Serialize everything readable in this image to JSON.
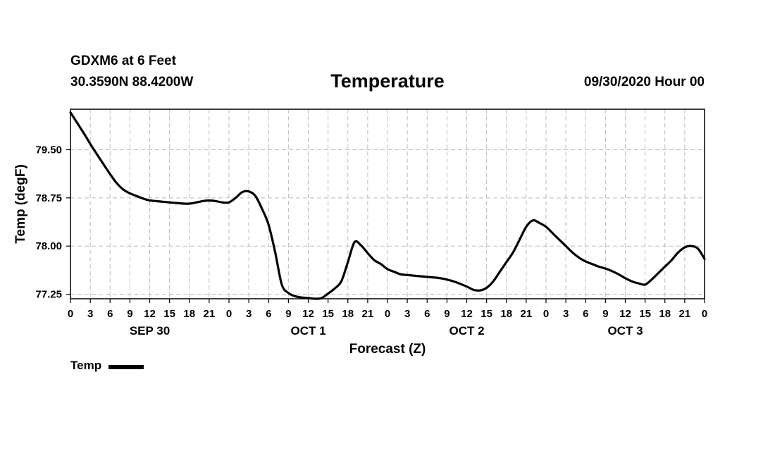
{
  "header": {
    "station": "GDXM6 at 6 Feet",
    "coords": "30.3590N 88.4200W",
    "title": "Temperature",
    "datetime": "09/30/2020 Hour 00"
  },
  "chart_data": {
    "type": "line",
    "title": "Temperature",
    "xlabel": "Forecast (Z)",
    "ylabel": "Temp (degF)",
    "xlim": [
      0,
      96
    ],
    "ylim": [
      77.18,
      80.13
    ],
    "grid": true,
    "legend_position": "bottom-left",
    "x_ticks": [
      0,
      3,
      6,
      9,
      12,
      15,
      18,
      21,
      24,
      27,
      30,
      33,
      36,
      39,
      42,
      45,
      48,
      51,
      54,
      57,
      60,
      63,
      66,
      69,
      72,
      75,
      78,
      81,
      84,
      87,
      90,
      93,
      96
    ],
    "x_tick_labels": [
      "0",
      "3",
      "6",
      "9",
      "12",
      "15",
      "18",
      "21",
      "0",
      "3",
      "6",
      "9",
      "12",
      "15",
      "18",
      "21",
      "0",
      "3",
      "6",
      "9",
      "12",
      "15",
      "18",
      "21",
      "0",
      "3",
      "6",
      "9",
      "12",
      "15",
      "18",
      "21",
      "0"
    ],
    "day_labels": [
      {
        "x": 12,
        "label": "SEP 30"
      },
      {
        "x": 36,
        "label": "OCT 1"
      },
      {
        "x": 60,
        "label": "OCT 2"
      },
      {
        "x": 84,
        "label": "OCT 3"
      }
    ],
    "y_ticks": [
      77.25,
      78.0,
      78.75,
      79.5
    ],
    "y_tick_labels": [
      "77.25",
      "78.00",
      "78.75",
      "79.50"
    ],
    "series": [
      {
        "name": "Temp",
        "color": "#000000",
        "x": [
          0,
          2,
          3,
          4,
          6,
          7,
          8,
          9,
          10,
          11,
          12,
          14,
          16,
          18,
          20,
          21,
          22,
          23,
          24,
          25,
          26,
          27,
          28,
          29,
          30,
          31,
          32,
          33,
          34,
          35,
          36,
          37,
          38,
          39,
          40,
          41,
          42,
          43,
          44,
          45,
          46,
          47,
          48,
          49,
          50,
          51,
          52,
          54,
          56,
          58,
          60,
          61,
          62,
          63,
          64,
          65,
          66,
          67,
          68,
          69,
          70,
          71,
          72,
          73,
          74,
          75,
          76,
          77,
          78,
          79,
          80,
          81,
          82,
          83,
          84,
          85,
          86,
          87,
          88,
          89,
          90,
          91,
          92,
          93,
          94,
          95,
          96
        ],
        "values": [
          80.08,
          79.76,
          79.59,
          79.43,
          79.12,
          78.98,
          78.88,
          78.82,
          78.78,
          78.74,
          78.71,
          78.69,
          78.67,
          78.66,
          78.7,
          78.71,
          78.7,
          78.68,
          78.68,
          78.75,
          78.84,
          78.85,
          78.78,
          78.58,
          78.33,
          77.9,
          77.4,
          77.27,
          77.22,
          77.2,
          77.19,
          77.18,
          77.19,
          77.26,
          77.34,
          77.45,
          77.75,
          78.06,
          78.01,
          77.89,
          77.78,
          77.72,
          77.64,
          77.6,
          77.56,
          77.55,
          77.54,
          77.52,
          77.5,
          77.45,
          77.37,
          77.32,
          77.31,
          77.35,
          77.45,
          77.6,
          77.75,
          77.9,
          78.1,
          78.3,
          78.4,
          78.36,
          78.3,
          78.2,
          78.1,
          78.0,
          77.9,
          77.82,
          77.76,
          77.72,
          77.68,
          77.65,
          77.61,
          77.56,
          77.5,
          77.45,
          77.42,
          77.4,
          77.48,
          77.58,
          77.68,
          77.78,
          77.9,
          77.98,
          78.0,
          77.96,
          77.8
        ]
      }
    ]
  },
  "legend": {
    "label": "Temp"
  }
}
